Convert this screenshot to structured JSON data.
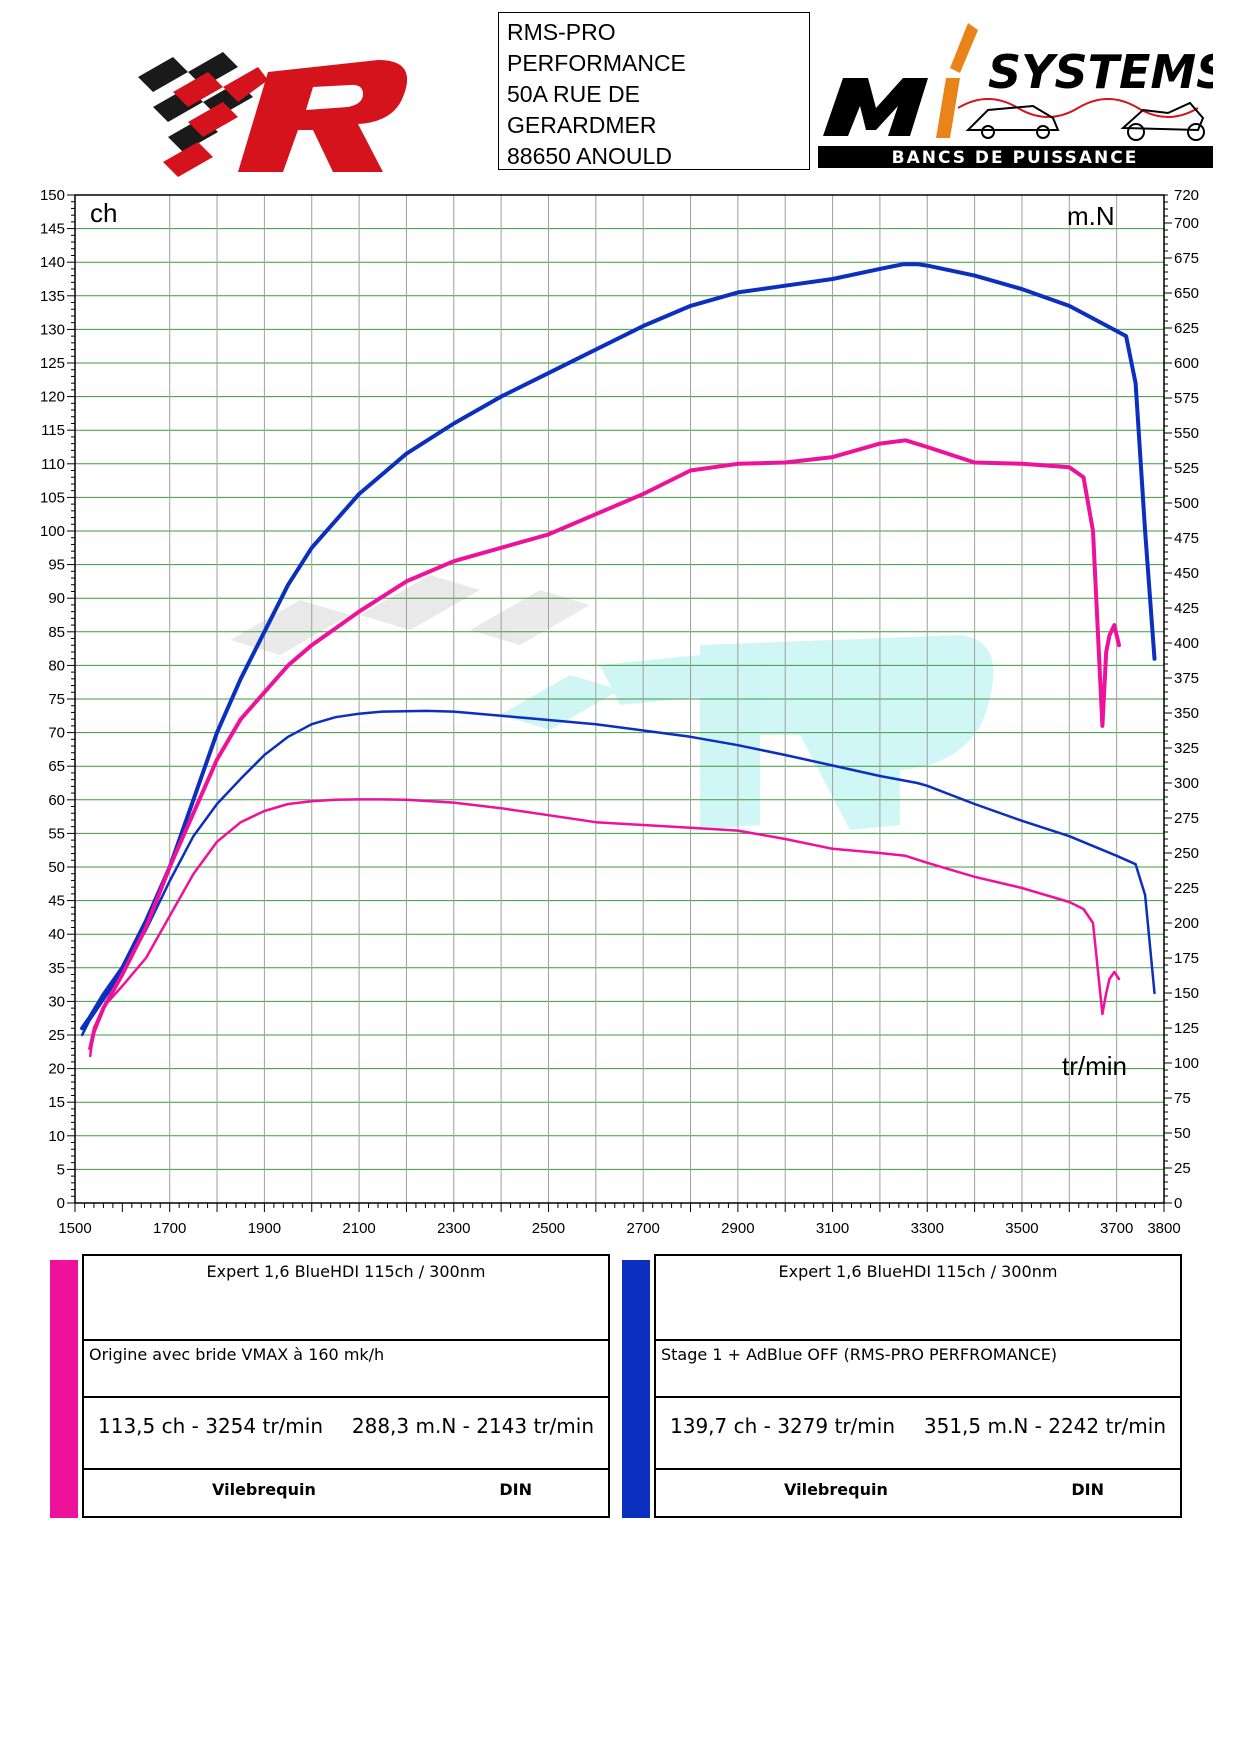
{
  "header": {
    "address_lines": [
      "RMS-PRO",
      "PERFORMANCE",
      "50A RUE DE",
      "GERARDMER",
      "88650 ANOULD"
    ],
    "logo_right": {
      "brand": "SYSTEMS",
      "tagline": "BANCS DE PUISSANCE"
    }
  },
  "chart_data": {
    "type": "line",
    "x_unit": "tr/min",
    "y_left_unit": "ch",
    "y_right_unit": "m.N",
    "xlim": [
      1500,
      3800
    ],
    "ylim_left": [
      0,
      150
    ],
    "ylim_right": [
      0,
      720
    ],
    "x_ticks": [
      1500,
      1700,
      1900,
      2100,
      2300,
      2500,
      2700,
      2900,
      3100,
      3300,
      3500,
      3700,
      3800
    ],
    "y_left_ticks": [
      0,
      5,
      10,
      15,
      20,
      25,
      30,
      35,
      40,
      45,
      50,
      55,
      60,
      65,
      70,
      75,
      80,
      85,
      90,
      95,
      100,
      105,
      110,
      115,
      120,
      125,
      130,
      135,
      140,
      145,
      150
    ],
    "y_right_ticks": [
      0,
      25,
      50,
      75,
      100,
      125,
      150,
      175,
      200,
      225,
      250,
      275,
      300,
      325,
      350,
      375,
      400,
      425,
      450,
      475,
      500,
      525,
      550,
      575,
      600,
      625,
      650,
      675,
      700,
      720
    ],
    "grid": true,
    "series": [
      {
        "name": "Stage 1 + AdBlue OFF (RMS-PRO PERFROMANCE)",
        "measure": "power",
        "axis": "left",
        "color": "#0b2fbf",
        "x": [
          1515,
          1530,
          1560,
          1600,
          1650,
          1700,
          1750,
          1800,
          1850,
          1900,
          1950,
          2000,
          2100,
          2200,
          2300,
          2400,
          2500,
          2600,
          2700,
          2800,
          2900,
          3000,
          3100,
          3200,
          3250,
          3279,
          3300,
          3400,
          3500,
          3600,
          3680,
          3720,
          3740,
          3760,
          3780
        ],
        "y": [
          26,
          27.5,
          31,
          35,
          42,
          50,
          60,
          70,
          78,
          85,
          92,
          97.5,
          105.5,
          111.5,
          116,
          120,
          123.5,
          127,
          130.5,
          133.5,
          135.5,
          136.5,
          137.5,
          139,
          139.7,
          139.7,
          139.5,
          138,
          136,
          133.5,
          130.5,
          129,
          122,
          100,
          81
        ]
      },
      {
        "name": "Stage 1 + AdBlue OFF (RMS-PRO PERFROMANCE)",
        "measure": "torque",
        "axis": "right",
        "color": "#0b2fbf",
        "x": [
          1515,
          1530,
          1560,
          1600,
          1650,
          1700,
          1750,
          1800,
          1850,
          1900,
          1950,
          2000,
          2050,
          2100,
          2150,
          2242,
          2300,
          2400,
          2500,
          2600,
          2700,
          2800,
          2900,
          3000,
          3100,
          3200,
          3279,
          3300,
          3400,
          3500,
          3600,
          3700,
          3740,
          3760,
          3780
        ],
        "y": [
          120,
          130,
          145,
          165,
          195,
          230,
          262,
          285,
          303,
          320,
          333,
          342,
          347,
          349.5,
          351,
          351.5,
          351,
          348,
          345,
          342,
          337.5,
          333,
          327,
          320,
          312.5,
          305,
          300,
          298,
          285,
          273,
          262,
          248,
          242,
          220,
          150
        ]
      },
      {
        "name": "Origine avec bride VMAX à 160 mk/h",
        "measure": "power",
        "axis": "left",
        "color": "#ee1199",
        "x": [
          1532,
          1540,
          1560,
          1600,
          1650,
          1700,
          1750,
          1800,
          1850,
          1900,
          1950,
          2000,
          2100,
          2200,
          2300,
          2400,
          2500,
          2600,
          2700,
          2800,
          2900,
          3000,
          3100,
          3200,
          3254,
          3300,
          3400,
          3500,
          3600,
          3630,
          3650,
          3670,
          3678,
          3685,
          3695,
          3705
        ],
        "y": [
          23,
          25.5,
          29,
          34,
          41,
          50,
          58,
          66,
          72,
          76,
          80,
          83,
          88,
          92.5,
          95.5,
          97.5,
          99.5,
          102.5,
          105.5,
          109,
          110,
          110.2,
          111,
          113,
          113.5,
          112.5,
          110.2,
          110,
          109.5,
          108,
          100,
          71,
          82,
          84.5,
          86,
          83
        ]
      },
      {
        "name": "Origine avec bride VMAX à 160 mk/h",
        "measure": "torque",
        "axis": "right",
        "color": "#ee1199",
        "x": [
          1532,
          1540,
          1560,
          1600,
          1650,
          1700,
          1750,
          1800,
          1850,
          1900,
          1950,
          2000,
          2050,
          2100,
          2143,
          2200,
          2300,
          2400,
          2500,
          2600,
          2700,
          2800,
          2900,
          3000,
          3100,
          3200,
          3254,
          3300,
          3400,
          3500,
          3600,
          3630,
          3650,
          3670,
          3678,
          3685,
          3695,
          3705
        ],
        "y": [
          105,
          125,
          140,
          155,
          175,
          205,
          235,
          258,
          272,
          280,
          285,
          287,
          288,
          288.3,
          288.3,
          288,
          286,
          282,
          277,
          272,
          270,
          268,
          266,
          260,
          253,
          250,
          248,
          243,
          233,
          225,
          215,
          210,
          200,
          135,
          150,
          160,
          165,
          160
        ]
      }
    ]
  },
  "results": [
    {
      "color": "#ee1199",
      "title": "Expert 1,6 BlueHDI 115ch / 300nm",
      "description": "Origine avec bride VMAX à 160 mk/h",
      "power_max": "113,5 ch - 3254 tr/min",
      "torque_max": "288,3 m.N - 2143 tr/min",
      "measure": "Vilebrequin",
      "norm": "DIN"
    },
    {
      "color": "#0b2fbf",
      "title": "Expert 1,6 BlueHDI 115ch / 300nm",
      "description": "Stage 1 + AdBlue OFF (RMS-PRO PERFROMANCE)",
      "power_max": "139,7 ch - 3279 tr/min",
      "torque_max": "351,5 m.N - 2242 tr/min",
      "measure": "Vilebrequin",
      "norm": "DIN"
    }
  ]
}
